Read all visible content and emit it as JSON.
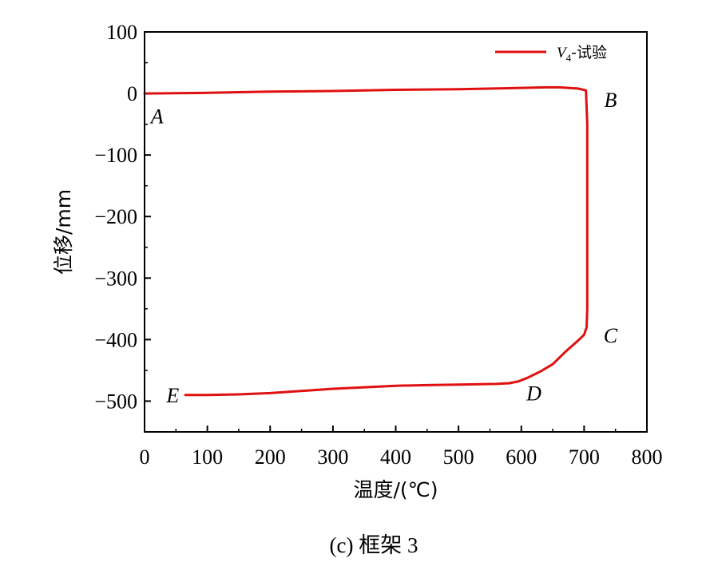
{
  "chart_data": {
    "type": "line",
    "xlabel": "温度/(℃)",
    "ylabel": "位移/mm",
    "xlim": [
      0,
      800
    ],
    "ylim": [
      -550,
      100
    ],
    "xticks": [
      0,
      100,
      200,
      300,
      400,
      500,
      600,
      700,
      800
    ],
    "yticks": [
      100,
      0,
      -100,
      -200,
      -300,
      -400,
      -500
    ],
    "ytick_labels": [
      "100",
      "0",
      "−100",
      "−200",
      "−300",
      "−400",
      "−500"
    ],
    "grid": false,
    "legend_position": "top-right",
    "series": [
      {
        "name": "V",
        "name_sub": "4",
        "name_suffix": "-试验",
        "color": "#e01010",
        "x": [
          0,
          100,
          200,
          300,
          400,
          500,
          600,
          640,
          660,
          690,
          703,
          705,
          705,
          705,
          704,
          700,
          690,
          670,
          650,
          630,
          610,
          595,
          580,
          560,
          500,
          450,
          400,
          300,
          200,
          150,
          100,
          65
        ],
        "y": [
          0,
          1,
          3,
          4,
          6,
          7,
          9,
          10,
          10,
          8,
          5,
          -50,
          -200,
          -350,
          -380,
          -392,
          -402,
          -420,
          -440,
          -452,
          -462,
          -468,
          -471,
          -472,
          -473,
          -474,
          -475,
          -480,
          -487,
          -489,
          -490,
          -490
        ]
      }
    ],
    "point_labels": [
      {
        "text": "A",
        "x": 20,
        "y": -37
      },
      {
        "text": "B",
        "x": 742,
        "y": -10
      },
      {
        "text": "C",
        "x": 742,
        "y": -393
      },
      {
        "text": "D",
        "x": 620,
        "y": -487
      },
      {
        "text": "E",
        "x": 45,
        "y": -490
      }
    ]
  },
  "caption": "(c)  框架 3"
}
